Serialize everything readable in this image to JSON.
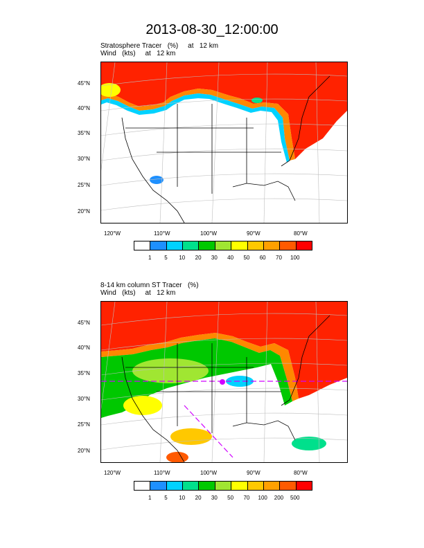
{
  "title": "2013-08-30_12:00:00",
  "panels": [
    {
      "subtitle_line1": "Stratosphere Tracer   (%)     at   12 km",
      "subtitle_line2": "Wind   (kts)     at   12 km",
      "lat_labels": [
        "45°N",
        "40°N",
        "35°N",
        "30°N",
        "25°N",
        "20°N"
      ],
      "lon_labels": [
        "120°W",
        "110°W",
        "100°W",
        "90°W",
        "80°W"
      ],
      "colorbar_labels": [
        "1",
        "5",
        "10",
        "20",
        "30",
        "40",
        "50",
        "60",
        "70",
        "100"
      ]
    },
    {
      "subtitle_line1": "8-14 km column ST Tracer   (%)",
      "subtitle_line2": "Wind   (kts)     at   12 km",
      "lat_labels": [
        "45°N",
        "40°N",
        "35°N",
        "30°N",
        "25°N",
        "20°N"
      ],
      "lon_labels": [
        "120°W",
        "110°W",
        "100°W",
        "90°W",
        "80°W"
      ],
      "colorbar_labels": [
        "1",
        "5",
        "10",
        "20",
        "30",
        "50",
        "70",
        "100",
        "200",
        "500"
      ]
    }
  ],
  "colorbar_colors": [
    "#ffffff",
    "#1e90ff",
    "#00d2ff",
    "#00e08c",
    "#00c800",
    "#a0e632",
    "#ffff00",
    "#ffc800",
    "#ffa000",
    "#ff5a00",
    "#ff0000"
  ],
  "chart_data": [
    {
      "type": "heatmap",
      "title": "Stratosphere Tracer   (%)     at   12 km",
      "overlay": "Wind   (kts)     at   12 km",
      "lat_ticks": [
        "45°N",
        "40°N",
        "35°N",
        "30°N",
        "25°N",
        "20°N"
      ],
      "lon_ticks": [
        "120°W",
        "110°W",
        "100°W",
        "90°W",
        "80°W"
      ],
      "levels": [
        1,
        5,
        10,
        20,
        30,
        40,
        50,
        60,
        70,
        100
      ]
    },
    {
      "type": "heatmap",
      "title": "8-14 km column ST Tracer   (%)",
      "overlay": "Wind   (kts)     at   12 km",
      "lat_ticks": [
        "45°N",
        "40°N",
        "35°N",
        "30°N",
        "25°N",
        "20°N"
      ],
      "lon_ticks": [
        "120°W",
        "110°W",
        "100°W",
        "90°W",
        "80°W"
      ],
      "levels": [
        1,
        5,
        10,
        20,
        30,
        50,
        70,
        100,
        200,
        500
      ]
    }
  ]
}
